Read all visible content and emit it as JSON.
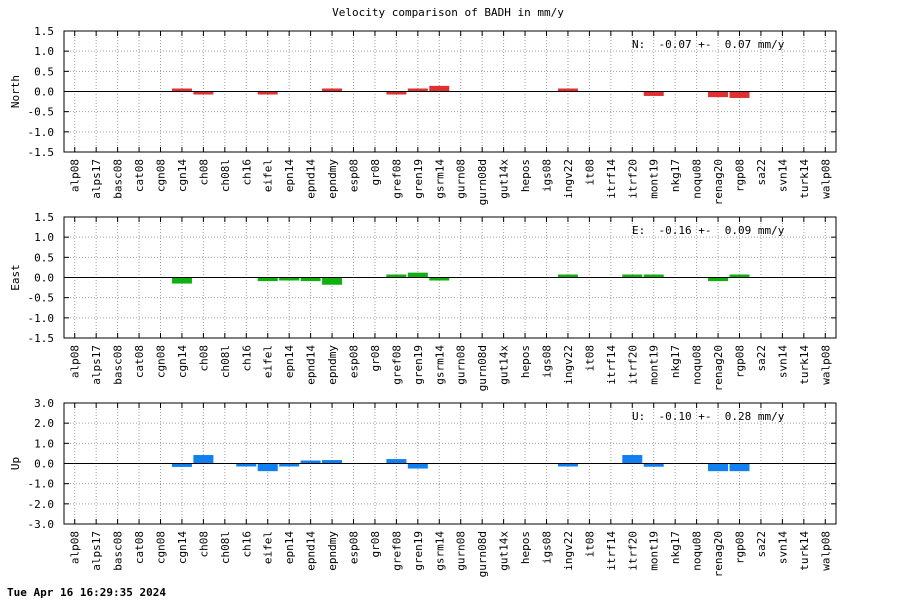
{
  "chart_data": {
    "type": "bar",
    "title": "Velocity comparison of BADH in mm/y",
    "timestamp": "Tue Apr 16 16:29:35 2024",
    "categories": [
      "alp08",
      "alps17",
      "basc08",
      "cat08",
      "cgn08",
      "cgn14",
      "ch08",
      "ch08l",
      "ch16",
      "eifel",
      "epn14",
      "epnd14",
      "epndmy",
      "esp08",
      "gr08",
      "gref08",
      "gren19",
      "gsrm14",
      "gurn08",
      "gurn08d",
      "gut14x",
      "hepos",
      "igs08",
      "ingv22",
      "it08",
      "itrf14",
      "itrf20",
      "mont19",
      "nkg17",
      "noqu08",
      "renag20",
      "rgp08",
      "sa22",
      "svn14",
      "turk14",
      "walp08"
    ],
    "grid": true,
    "panels": [
      {
        "ylabel": "North",
        "summary": "N:  -0.07 +-  0.07 mm/y",
        "color": "#e03030",
        "ylim": [
          -1.5,
          1.5
        ],
        "yticks": [
          "1.5",
          "1.0",
          "0.5",
          "0.0",
          "-0.5",
          "-1.0",
          "-1.5"
        ],
        "values": [
          null,
          null,
          null,
          null,
          null,
          0.04,
          -0.06,
          null,
          null,
          -0.02,
          null,
          null,
          0.06,
          null,
          null,
          -0.02,
          0.04,
          0.14,
          null,
          null,
          null,
          null,
          null,
          0.06,
          null,
          null,
          null,
          -0.11,
          null,
          null,
          -0.14,
          -0.16,
          null,
          null,
          null,
          null
        ]
      },
      {
        "ylabel": "East",
        "summary": "E:  -0.16 +-  0.09 mm/y",
        "color": "#10b010",
        "ylim": [
          -1.5,
          1.5
        ],
        "yticks": [
          "1.5",
          "1.0",
          "0.5",
          "0.0",
          "-0.5",
          "-1.0",
          "-1.5"
        ],
        "values": [
          null,
          null,
          null,
          null,
          null,
          -0.15,
          null,
          null,
          null,
          -0.09,
          -0.07,
          -0.09,
          -0.18,
          null,
          null,
          0.02,
          0.12,
          -0.02,
          null,
          null,
          null,
          null,
          null,
          0.01,
          null,
          null,
          0.04,
          0.07,
          null,
          null,
          -0.09,
          0.06,
          null,
          null,
          null,
          null
        ]
      },
      {
        "ylabel": "Up",
        "summary": "U:  -0.10 +-  0.28 mm/y",
        "color": "#1080f0",
        "ylim": [
          -3.0,
          3.0
        ],
        "yticks": [
          "3.0",
          "2.0",
          "1.0",
          "0.0",
          "-1.0",
          "-2.0",
          "-3.0"
        ],
        "values": [
          null,
          null,
          null,
          null,
          null,
          -0.17,
          0.42,
          null,
          -0.11,
          -0.38,
          -0.09,
          0.12,
          0.17,
          null,
          null,
          0.22,
          -0.25,
          null,
          null,
          null,
          null,
          null,
          null,
          -0.11,
          null,
          null,
          0.42,
          -0.16,
          null,
          null,
          -0.38,
          -0.38,
          null,
          null,
          null,
          null
        ]
      }
    ]
  }
}
